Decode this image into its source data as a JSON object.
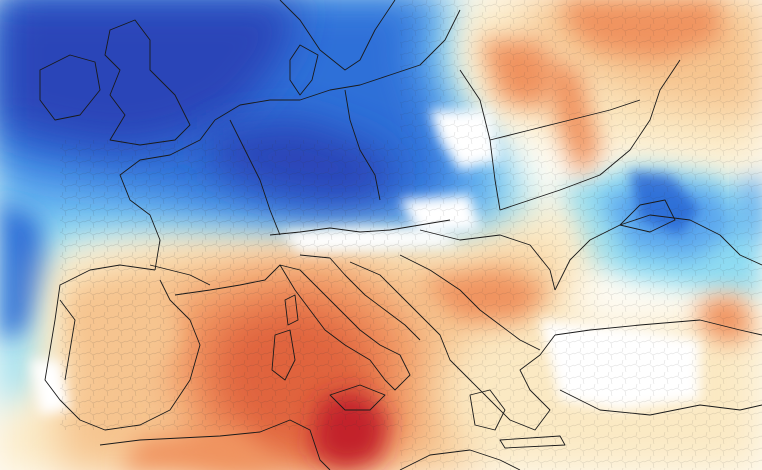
{
  "map": {
    "kind": "temperature-anomaly-field",
    "region": "Europe",
    "labels_visible": false,
    "palette": {
      "deep_blue": "#2a44b8",
      "blue": "#2f6fd8",
      "light_blue": "#5aa6ee",
      "cyan": "#8fdcf2",
      "pale_cyan": "#c9f0f8",
      "white": "#ffffff",
      "pale_yellow": "#fbe9c3",
      "light_orange": "#f6c48f",
      "orange": "#f0935e",
      "red_orange": "#e0633d",
      "dark_red": "#c3202a",
      "border_color": "#1a1a1a"
    },
    "anomaly_areas": [
      {
        "name": "cold-core-north-sea-benelux-germany",
        "category": "cold"
      },
      {
        "name": "cold-western-atlantic",
        "category": "cold"
      },
      {
        "name": "cold-black-sea-crimea",
        "category": "cold"
      },
      {
        "name": "warm-italy-tyrrhenian",
        "category": "warm"
      },
      {
        "name": "warm-sicily-libya",
        "category": "warm"
      },
      {
        "name": "warm-poland-baltic",
        "category": "warm"
      },
      {
        "name": "warm-western-russia",
        "category": "warm"
      },
      {
        "name": "warm-balkans",
        "category": "warm"
      },
      {
        "name": "warm-iberia",
        "category": "warm"
      }
    ]
  }
}
